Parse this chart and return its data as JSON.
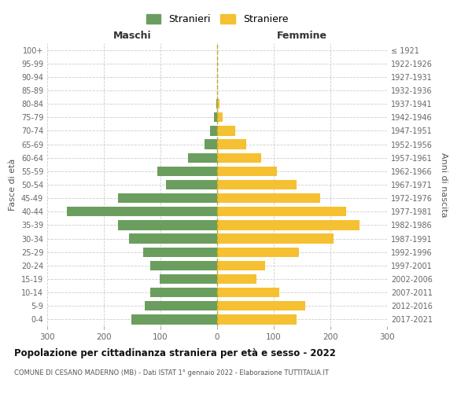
{
  "age_groups": [
    "100+",
    "95-99",
    "90-94",
    "85-89",
    "80-84",
    "75-79",
    "70-74",
    "65-69",
    "60-64",
    "55-59",
    "50-54",
    "45-49",
    "40-44",
    "35-39",
    "30-34",
    "25-29",
    "20-24",
    "15-19",
    "10-14",
    "5-9",
    "0-4"
  ],
  "birth_years": [
    "≤ 1921",
    "1922-1926",
    "1927-1931",
    "1932-1936",
    "1937-1941",
    "1942-1946",
    "1947-1951",
    "1952-1956",
    "1957-1961",
    "1962-1966",
    "1967-1971",
    "1972-1976",
    "1977-1981",
    "1982-1986",
    "1987-1991",
    "1992-1996",
    "1997-2001",
    "2002-2006",
    "2007-2011",
    "2012-2016",
    "2017-2021"
  ],
  "maschi": [
    0,
    0,
    0,
    0,
    2,
    5,
    12,
    22,
    52,
    105,
    90,
    175,
    265,
    175,
    155,
    130,
    118,
    102,
    118,
    128,
    152
  ],
  "femmine": [
    0,
    0,
    0,
    0,
    4,
    10,
    32,
    52,
    78,
    105,
    140,
    182,
    228,
    252,
    205,
    145,
    85,
    70,
    110,
    155,
    140
  ],
  "maschi_color": "#6b9e5e",
  "femmine_color": "#f5c031",
  "background_color": "#ffffff",
  "grid_color": "#cccccc",
  "title": "Popolazione per cittadinanza straniera per età e sesso - 2022",
  "subtitle": "COMUNE DI CESANO MADERNO (MB) - Dati ISTAT 1° gennaio 2022 - Elaborazione TUTTITALIA.IT",
  "ylabel": "Fasce di età",
  "ylabel_right": "Anni di nascita",
  "xlabel_left": "Maschi",
  "xlabel_right": "Femmine",
  "xlim": 300,
  "legend_stranieri": "Stranieri",
  "legend_straniere": "Straniere"
}
